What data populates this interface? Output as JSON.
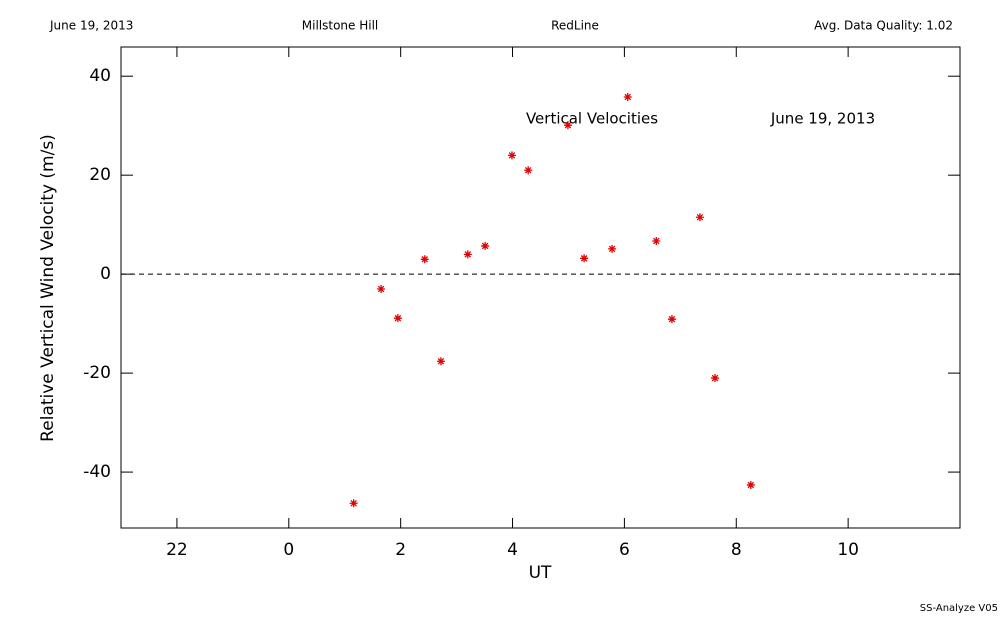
{
  "chart_data": {
    "type": "scatter",
    "header": [
      "June 19, 2013",
      "Millstone Hill",
      "RedLine",
      "Avg. Data Quality: 1.02"
    ],
    "annotations": [
      "Vertical Velocities",
      "June 19, 2013"
    ],
    "footer": "SS-Analyze V05",
    "xlabel": "UT",
    "ylabel": "Relative Vertical Wind Velocity (m/s)",
    "x": [
      1.16,
      1.65,
      1.95,
      2.43,
      2.72,
      3.2,
      3.51,
      3.99,
      4.28,
      4.99,
      5.28,
      5.78,
      6.06,
      6.57,
      6.85,
      7.35,
      7.62,
      8.26
    ],
    "series": [
      {
        "color": "#e00000",
        "values": [
          -46.3,
          -3.0,
          -8.9,
          3.0,
          -17.6,
          4.0,
          5.7,
          24.0,
          21.0,
          30.1,
          3.2,
          5.1,
          35.8,
          6.7,
          -9.1,
          11.5,
          -21.0,
          -42.6
        ]
      }
    ],
    "xlim": [
      -3,
      12
    ],
    "xticks": [
      {
        "value": -2,
        "label": "22"
      },
      0,
      2,
      4,
      6,
      8,
      10
    ],
    "ylim": [
      -51.3,
      45.9
    ],
    "yticks": [
      -40,
      -20,
      0,
      20,
      40
    ],
    "zero_line": true
  }
}
